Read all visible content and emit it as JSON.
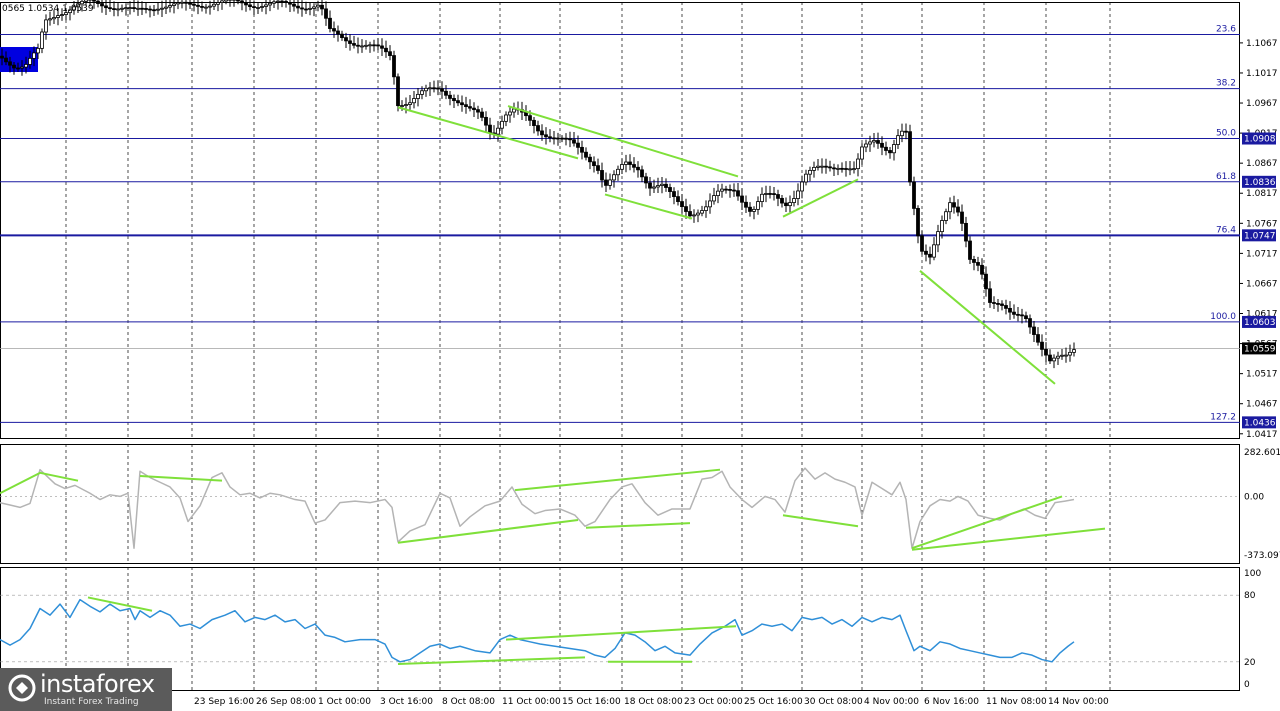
{
  "chart_data": {
    "type": "candlestick",
    "instrument_header": "0565 1.0534 1.0539",
    "x_labels": [
      "23 Sep 16:00",
      "26 Sep 08:00",
      "1 Oct 00:00",
      "3 Oct 16:00",
      "8 Oct 08:00",
      "11 Oct 00:00",
      "15 Oct 16:00",
      "18 Oct 08:00",
      "23 Oct 00:00",
      "25 Oct 16:00",
      "30 Oct 08:00",
      "4 Nov 00:00",
      "6 Nov 16:00",
      "11 Nov 08:00",
      "14 Nov 00:00"
    ],
    "price_ticks": [
      "1.1067",
      "1.1017",
      "1.0967",
      "1.0917",
      "1.0867",
      "1.0817",
      "1.0767",
      "1.0717",
      "1.0667",
      "1.0617",
      "1.0567",
      "1.0517",
      "1.0467",
      "1.0417"
    ],
    "price_range": [
      1.041,
      1.1135
    ],
    "fib_levels": [
      {
        "label": "23.6",
        "price": 1.1081,
        "badge": ""
      },
      {
        "label": "38.2",
        "price": 1.0991,
        "badge": ""
      },
      {
        "label": "50.0",
        "price": 1.0908,
        "badge": "1.0908"
      },
      {
        "label": "61.8",
        "price": 1.0836,
        "badge": "1.0836"
      },
      {
        "label": "76.4",
        "price": 1.0747,
        "badge": "1.0747"
      },
      {
        "label": "100.0",
        "price": 1.0603,
        "badge": "1.0603"
      },
      {
        "label": "127.2",
        "price": 1.0436,
        "badge": "1.0436"
      }
    ],
    "current_price": "1.0559",
    "price_series": [
      [
        0,
        1.1045
      ],
      [
        8,
        1.1038
      ],
      [
        15,
        1.103
      ],
      [
        25,
        1.1028
      ],
      [
        38,
        1.1052
      ],
      [
        45,
        1.1102
      ],
      [
        58,
        1.1118
      ],
      [
        72,
        1.1125
      ],
      [
        90,
        1.1135
      ],
      [
        110,
        1.113
      ],
      [
        135,
        1.1118
      ],
      [
        160,
        1.113
      ],
      [
        190,
        1.1128
      ],
      [
        215,
        1.1135
      ],
      [
        250,
        1.1132
      ],
      [
        290,
        1.113
      ],
      [
        320,
        1.1128
      ],
      [
        330,
        1.1085
      ],
      [
        345,
        1.1075
      ],
      [
        360,
        1.1065
      ],
      [
        380,
        1.1055
      ],
      [
        392,
        1.1045
      ],
      [
        397,
        1.0968
      ],
      [
        410,
        1.097
      ],
      [
        425,
        1.0985
      ],
      [
        440,
        1.0992
      ],
      [
        455,
        1.0975
      ],
      [
        468,
        1.0955
      ],
      [
        480,
        1.0945
      ],
      [
        492,
        1.0915
      ],
      [
        505,
        1.095
      ],
      [
        515,
        1.0955
      ],
      [
        525,
        1.0942
      ],
      [
        540,
        1.092
      ],
      [
        555,
        1.0912
      ],
      [
        570,
        1.09
      ],
      [
        585,
        1.088
      ],
      [
        597,
        1.0865
      ],
      [
        605,
        1.083
      ],
      [
        615,
        1.0845
      ],
      [
        625,
        1.0865
      ],
      [
        638,
        1.086
      ],
      [
        650,
        1.083
      ],
      [
        662,
        1.0828
      ],
      [
        675,
        1.0805
      ],
      [
        690,
        1.0785
      ],
      [
        705,
        1.0792
      ],
      [
        720,
        1.0818
      ],
      [
        735,
        1.0825
      ],
      [
        742,
        1.0808
      ],
      [
        752,
        1.0785
      ],
      [
        762,
        1.081
      ],
      [
        775,
        1.0812
      ],
      [
        785,
        1.08
      ],
      [
        795,
        1.0815
      ],
      [
        805,
        1.0845
      ],
      [
        815,
        1.0855
      ],
      [
        825,
        1.086
      ],
      [
        840,
        1.0865
      ],
      [
        855,
        1.0855
      ],
      [
        862,
        1.0888
      ],
      [
        875,
        1.0905
      ],
      [
        890,
        1.089
      ],
      [
        900,
        1.092
      ],
      [
        906,
        1.0915
      ],
      [
        910,
        1.083
      ],
      [
        915,
        1.0775
      ],
      [
        920,
        1.072
      ],
      [
        930,
        1.0715
      ],
      [
        940,
        1.077
      ],
      [
        950,
        1.08
      ],
      [
        960,
        1.0775
      ],
      [
        970,
        1.0705
      ],
      [
        980,
        1.07
      ],
      [
        990,
        1.064
      ],
      [
        1000,
        1.063
      ],
      [
        1012,
        1.061
      ],
      [
        1025,
        1.0615
      ],
      [
        1035,
        1.0585
      ],
      [
        1042,
        1.056
      ],
      [
        1050,
        1.0535
      ],
      [
        1058,
        1.054
      ],
      [
        1066,
        1.0545
      ],
      [
        1074,
        1.056
      ]
    ],
    "cci": {
      "ticks": [
        "282.6012",
        "0.00",
        "-373.0978"
      ],
      "range": [
        -373.0978,
        282.6012
      ],
      "series": [
        [
          0,
          -40
        ],
        [
          10,
          -55
        ],
        [
          20,
          -70
        ],
        [
          30,
          -45
        ],
        [
          40,
          170
        ],
        [
          55,
          80
        ],
        [
          65,
          50
        ],
        [
          75,
          70
        ],
        [
          90,
          20
        ],
        [
          100,
          -20
        ],
        [
          110,
          10
        ],
        [
          120,
          0
        ],
        [
          128,
          20
        ],
        [
          134,
          -330
        ],
        [
          140,
          160
        ],
        [
          150,
          120
        ],
        [
          160,
          90
        ],
        [
          170,
          60
        ],
        [
          180,
          -10
        ],
        [
          188,
          -160
        ],
        [
          200,
          -60
        ],
        [
          212,
          120
        ],
        [
          222,
          150
        ],
        [
          230,
          60
        ],
        [
          240,
          10
        ],
        [
          250,
          20
        ],
        [
          260,
          -10
        ],
        [
          270,
          20
        ],
        [
          280,
          10
        ],
        [
          295,
          -20
        ],
        [
          305,
          -30
        ],
        [
          315,
          -170
        ],
        [
          325,
          -150
        ],
        [
          340,
          -40
        ],
        [
          355,
          -30
        ],
        [
          370,
          -40
        ],
        [
          385,
          -20
        ],
        [
          392,
          -70
        ],
        [
          398,
          -290
        ],
        [
          410,
          -220
        ],
        [
          425,
          -180
        ],
        [
          440,
          20
        ],
        [
          450,
          -10
        ],
        [
          460,
          -190
        ],
        [
          470,
          -130
        ],
        [
          485,
          -60
        ],
        [
          500,
          -30
        ],
        [
          512,
          60
        ],
        [
          522,
          -50
        ],
        [
          535,
          -110
        ],
        [
          545,
          -90
        ],
        [
          560,
          -80
        ],
        [
          575,
          -120
        ],
        [
          585,
          -190
        ],
        [
          595,
          -160
        ],
        [
          610,
          -20
        ],
        [
          622,
          60
        ],
        [
          632,
          80
        ],
        [
          645,
          -40
        ],
        [
          658,
          -120
        ],
        [
          672,
          -80
        ],
        [
          690,
          -80
        ],
        [
          702,
          110
        ],
        [
          712,
          120
        ],
        [
          722,
          160
        ],
        [
          730,
          60
        ],
        [
          742,
          -20
        ],
        [
          752,
          -70
        ],
        [
          765,
          0
        ],
        [
          775,
          -20
        ],
        [
          785,
          -100
        ],
        [
          795,
          100
        ],
        [
          805,
          180
        ],
        [
          815,
          110
        ],
        [
          825,
          150
        ],
        [
          835,
          110
        ],
        [
          845,
          90
        ],
        [
          855,
          60
        ],
        [
          862,
          -120
        ],
        [
          872,
          90
        ],
        [
          882,
          50
        ],
        [
          892,
          10
        ],
        [
          900,
          90
        ],
        [
          906,
          -20
        ],
        [
          912,
          -330
        ],
        [
          920,
          -160
        ],
        [
          930,
          -60
        ],
        [
          940,
          -20
        ],
        [
          950,
          -30
        ],
        [
          958,
          0
        ],
        [
          968,
          -30
        ],
        [
          978,
          -120
        ],
        [
          990,
          -140
        ],
        [
          1000,
          -150
        ],
        [
          1012,
          -110
        ],
        [
          1024,
          -80
        ],
        [
          1035,
          -120
        ],
        [
          1045,
          -140
        ],
        [
          1055,
          -40
        ],
        [
          1065,
          -30
        ],
        [
          1074,
          -20
        ]
      ]
    },
    "rsi": {
      "ticks": [
        "100",
        "80",
        "20",
        "0"
      ],
      "range": [
        0,
        100
      ],
      "series": [
        [
          0,
          40
        ],
        [
          10,
          35
        ],
        [
          20,
          40
        ],
        [
          30,
          50
        ],
        [
          40,
          68
        ],
        [
          50,
          62
        ],
        [
          60,
          72
        ],
        [
          70,
          60
        ],
        [
          80,
          76
        ],
        [
          90,
          70
        ],
        [
          100,
          65
        ],
        [
          110,
          72
        ],
        [
          120,
          66
        ],
        [
          130,
          68
        ],
        [
          135,
          58
        ],
        [
          140,
          66
        ],
        [
          150,
          60
        ],
        [
          160,
          66
        ],
        [
          170,
          62
        ],
        [
          180,
          52
        ],
        [
          190,
          54
        ],
        [
          200,
          50
        ],
        [
          212,
          58
        ],
        [
          225,
          62
        ],
        [
          235,
          66
        ],
        [
          245,
          56
        ],
        [
          255,
          60
        ],
        [
          265,
          58
        ],
        [
          275,
          62
        ],
        [
          285,
          56
        ],
        [
          295,
          58
        ],
        [
          305,
          50
        ],
        [
          315,
          54
        ],
        [
          325,
          44
        ],
        [
          335,
          42
        ],
        [
          345,
          38
        ],
        [
          360,
          40
        ],
        [
          375,
          40
        ],
        [
          385,
          36
        ],
        [
          392,
          24
        ],
        [
          400,
          20
        ],
        [
          410,
          22
        ],
        [
          420,
          28
        ],
        [
          430,
          34
        ],
        [
          440,
          36
        ],
        [
          450,
          32
        ],
        [
          460,
          34
        ],
        [
          475,
          30
        ],
        [
          490,
          28
        ],
        [
          500,
          40
        ],
        [
          510,
          44
        ],
        [
          520,
          40
        ],
        [
          530,
          38
        ],
        [
          540,
          36
        ],
        [
          555,
          34
        ],
        [
          570,
          32
        ],
        [
          585,
          30
        ],
        [
          595,
          26
        ],
        [
          605,
          24
        ],
        [
          615,
          32
        ],
        [
          625,
          46
        ],
        [
          635,
          44
        ],
        [
          645,
          38
        ],
        [
          655,
          30
        ],
        [
          665,
          34
        ],
        [
          675,
          28
        ],
        [
          690,
          26
        ],
        [
          700,
          36
        ],
        [
          712,
          46
        ],
        [
          725,
          52
        ],
        [
          735,
          58
        ],
        [
          742,
          44
        ],
        [
          752,
          48
        ],
        [
          762,
          54
        ],
        [
          772,
          52
        ],
        [
          782,
          54
        ],
        [
          792,
          48
        ],
        [
          802,
          60
        ],
        [
          812,
          58
        ],
        [
          822,
          60
        ],
        [
          832,
          54
        ],
        [
          842,
          58
        ],
        [
          852,
          52
        ],
        [
          862,
          60
        ],
        [
          872,
          56
        ],
        [
          882,
          60
        ],
        [
          892,
          58
        ],
        [
          900,
          62
        ],
        [
          906,
          48
        ],
        [
          914,
          30
        ],
        [
          920,
          34
        ],
        [
          930,
          30
        ],
        [
          940,
          38
        ],
        [
          950,
          36
        ],
        [
          960,
          32
        ],
        [
          970,
          30
        ],
        [
          980,
          28
        ],
        [
          990,
          26
        ],
        [
          1000,
          24
        ],
        [
          1012,
          24
        ],
        [
          1022,
          28
        ],
        [
          1032,
          26
        ],
        [
          1042,
          22
        ],
        [
          1052,
          20
        ],
        [
          1060,
          28
        ],
        [
          1068,
          34
        ],
        [
          1074,
          38
        ]
      ]
    },
    "trendlines_main": [
      [
        [
          398,
          1.096
        ],
        [
          578,
          1.0875
        ]
      ],
      [
        [
          508,
          1.0962
        ],
        [
          738,
          1.0845
        ]
      ],
      [
        [
          605,
          1.0815
        ],
        [
          692,
          1.0775
        ]
      ],
      [
        [
          783,
          1.0778
        ],
        [
          858,
          1.084
        ]
      ],
      [
        [
          920,
          1.0688
        ],
        [
          1055,
          1.05
        ]
      ]
    ],
    "trendlines_cci": [
      [
        [
          0,
          20
        ],
        [
          40,
          150
        ],
        [
          78,
          100
        ]
      ],
      [
        [
          140,
          130
        ],
        [
          222,
          100
        ]
      ],
      [
        [
          398,
          -295
        ],
        [
          578,
          -150
        ]
      ],
      [
        [
          515,
          40
        ],
        [
          720,
          170
        ]
      ],
      [
        [
          586,
          -200
        ],
        [
          690,
          -170
        ]
      ],
      [
        [
          783,
          -120
        ],
        [
          858,
          -190
        ]
      ],
      [
        [
          912,
          -330
        ],
        [
          1062,
          0
        ]
      ],
      [
        [
          912,
          -340
        ],
        [
          1105,
          -205
        ]
      ]
    ],
    "trendlines_rsi": [
      [
        [
          88,
          78
        ],
        [
          152,
          66
        ]
      ],
      [
        [
          398,
          18
        ],
        [
          585,
          24
        ]
      ],
      [
        [
          506,
          40
        ],
        [
          736,
          52
        ]
      ],
      [
        [
          608,
          20
        ],
        [
          692,
          20
        ]
      ]
    ],
    "colors": {
      "candle": "#000000",
      "grid": "#000000",
      "fib": "#1a1aa0",
      "fib_badge": "#1a1aa0",
      "trend": "#7fe03a",
      "cci": "#b4b4b4",
      "rsi": "#2f8fd8",
      "current_badge": "#000000",
      "header_box": "#0000e0"
    }
  },
  "watermark": {
    "brand": "instaforex",
    "tagline": "Instant Forex Trading"
  }
}
